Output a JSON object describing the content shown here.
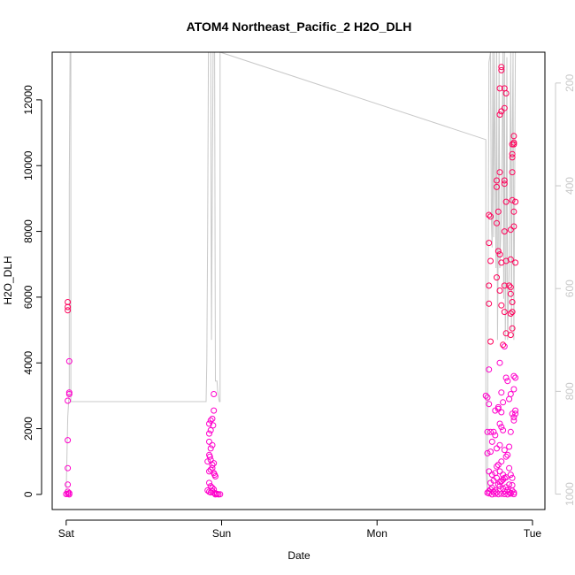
{
  "chart_data": {
    "type": "scatter",
    "title": "ATOM4 Northeast_Pacific_2 H2O_DLH",
    "xlabel": "Date",
    "ylabel": "H2O_DLH",
    "x_ticks": [
      {
        "label": "Sat",
        "day": 0
      },
      {
        "label": "Sun",
        "day": 1
      },
      {
        "label": "Mon",
        "day": 2
      },
      {
        "label": "Tue",
        "day": 3
      }
    ],
    "xlim_days": [
      -0.09,
      3.08
    ],
    "ylim": [
      -460,
      13450
    ],
    "y_ticks": [
      0,
      2000,
      4000,
      6000,
      8000,
      10000,
      12000
    ],
    "right_axis": {
      "ticks": [
        200,
        400,
        600,
        800,
        1000
      ],
      "color": "#c8c8c8",
      "lim": [
        1030,
        140
      ],
      "reversed": true
    },
    "grid": false,
    "legend": "none",
    "colors": {
      "points_low": "#ff00cc",
      "points_high": "#ff005a",
      "line": "#c8c8c8"
    },
    "series": [
      {
        "marker": "open-circle",
        "points": [
          [
            0.01,
            5850
          ],
          [
            0.01,
            5700
          ],
          [
            0.01,
            5600
          ],
          [
            0.02,
            4050
          ],
          [
            0.02,
            3100
          ],
          [
            0.02,
            3050
          ],
          [
            0.01,
            2850
          ],
          [
            0.01,
            1650
          ],
          [
            0.01,
            800
          ],
          [
            0.01,
            300
          ],
          [
            0.01,
            80
          ],
          [
            0.01,
            20
          ],
          [
            0.02,
            0
          ],
          [
            0.0,
            10
          ],
          [
            0.02,
            40
          ],
          [
            0.91,
            1000
          ],
          [
            0.92,
            2150
          ],
          [
            0.93,
            2250
          ],
          [
            0.92,
            1850
          ],
          [
            0.93,
            1950
          ],
          [
            0.94,
            2300
          ],
          [
            0.95,
            2550
          ],
          [
            0.95,
            3050
          ],
          [
            0.92,
            1600
          ],
          [
            0.93,
            1400
          ],
          [
            0.94,
            1500
          ],
          [
            0.92,
            1200
          ],
          [
            0.93,
            1050
          ],
          [
            0.94,
            900
          ],
          [
            0.95,
            950
          ],
          [
            0.92,
            700
          ],
          [
            0.93,
            750
          ],
          [
            0.94,
            800
          ],
          [
            0.95,
            650
          ],
          [
            0.96,
            550
          ],
          [
            0.92,
            350
          ],
          [
            0.93,
            250
          ],
          [
            0.94,
            200
          ],
          [
            0.95,
            150
          ],
          [
            0.91,
            120
          ],
          [
            0.92,
            80
          ],
          [
            0.93,
            60
          ],
          [
            0.94,
            100
          ],
          [
            0.95,
            50
          ],
          [
            0.96,
            30
          ],
          [
            0.97,
            10
          ],
          [
            0.98,
            0
          ],
          [
            0.99,
            5
          ],
          [
            0.96,
            0
          ],
          [
            0.97,
            20
          ],
          [
            0.945,
            2100
          ],
          [
            0.925,
            1150
          ],
          [
            0.955,
            600
          ],
          [
            2.7,
            3000
          ],
          [
            2.71,
            1900
          ],
          [
            2.71,
            1250
          ],
          [
            2.72,
            700
          ],
          [
            2.73,
            1300
          ],
          [
            2.73,
            1900
          ],
          [
            2.74,
            1600
          ],
          [
            2.75,
            1900
          ],
          [
            2.72,
            2750
          ],
          [
            2.71,
            2950
          ],
          [
            2.72,
            3800
          ],
          [
            2.73,
            4650
          ],
          [
            2.72,
            5800
          ],
          [
            2.72,
            6350
          ],
          [
            2.73,
            7100
          ],
          [
            2.72,
            7650
          ],
          [
            2.73,
            8450
          ],
          [
            2.72,
            8500
          ],
          [
            2.77,
            8250
          ],
          [
            2.78,
            8600
          ],
          [
            2.77,
            9350
          ],
          [
            2.77,
            9550
          ],
          [
            2.78,
            7400
          ],
          [
            2.77,
            6600
          ],
          [
            2.79,
            6200
          ],
          [
            2.8,
            5750
          ],
          [
            2.79,
            7300
          ],
          [
            2.8,
            7050
          ],
          [
            2.79,
            9800
          ],
          [
            2.82,
            9450
          ],
          [
            2.82,
            9550
          ],
          [
            2.83,
            8900
          ],
          [
            2.82,
            8000
          ],
          [
            2.83,
            7100
          ],
          [
            2.82,
            6350
          ],
          [
            2.82,
            5550
          ],
          [
            2.83,
            4900
          ],
          [
            2.82,
            4500
          ],
          [
            2.79,
            4000
          ],
          [
            2.8,
            3100
          ],
          [
            2.81,
            2800
          ],
          [
            2.8,
            2500
          ],
          [
            2.79,
            2150
          ],
          [
            2.8,
            2050
          ],
          [
            2.81,
            1950
          ],
          [
            2.79,
            1500
          ],
          [
            2.77,
            1400
          ],
          [
            2.76,
            1800
          ],
          [
            2.78,
            2650
          ],
          [
            2.76,
            2550
          ],
          [
            2.78,
            2600
          ],
          [
            2.8,
            12900
          ],
          [
            2.8,
            13000
          ],
          [
            2.79,
            12350
          ],
          [
            2.79,
            11550
          ],
          [
            2.8,
            11650
          ],
          [
            2.82,
            11750
          ],
          [
            2.82,
            12350
          ],
          [
            2.83,
            12200
          ],
          [
            2.81,
            4550
          ],
          [
            2.84,
            3450
          ],
          [
            2.83,
            3550
          ],
          [
            2.85,
            2900
          ],
          [
            2.86,
            1900
          ],
          [
            2.85,
            1450
          ],
          [
            2.84,
            1200
          ],
          [
            2.83,
            1150
          ],
          [
            2.82,
            1350
          ],
          [
            2.81,
            600
          ],
          [
            2.82,
            500
          ],
          [
            2.85,
            800
          ],
          [
            2.86,
            600
          ],
          [
            2.87,
            500
          ],
          [
            2.86,
            3050
          ],
          [
            2.85,
            6350
          ],
          [
            2.86,
            6100
          ],
          [
            2.86,
            6300
          ],
          [
            2.87,
            5850
          ],
          [
            2.86,
            5500
          ],
          [
            2.87,
            5550
          ],
          [
            2.87,
            5050
          ],
          [
            2.86,
            4850
          ],
          [
            2.86,
            7150
          ],
          [
            2.86,
            8050
          ],
          [
            2.87,
            9800
          ],
          [
            2.87,
            10250
          ],
          [
            2.87,
            10350
          ],
          [
            2.87,
            10650
          ],
          [
            2.88,
            10700
          ],
          [
            2.88,
            10900
          ],
          [
            2.88,
            10650
          ],
          [
            2.87,
            8950
          ],
          [
            2.88,
            8600
          ],
          [
            2.89,
            8900
          ],
          [
            2.88,
            8150
          ],
          [
            2.89,
            7050
          ],
          [
            2.88,
            3600
          ],
          [
            2.89,
            3550
          ],
          [
            2.88,
            3200
          ],
          [
            2.89,
            2550
          ],
          [
            2.88,
            2350
          ],
          [
            2.89,
            2450
          ],
          [
            2.87,
            2450
          ],
          [
            2.88,
            2250
          ],
          [
            2.71,
            50
          ],
          [
            2.72,
            100
          ],
          [
            2.73,
            150
          ],
          [
            2.74,
            200
          ],
          [
            2.75,
            80
          ],
          [
            2.76,
            120
          ],
          [
            2.77,
            60
          ],
          [
            2.78,
            300
          ],
          [
            2.79,
            250
          ],
          [
            2.8,
            400
          ],
          [
            2.81,
            180
          ],
          [
            2.82,
            90
          ],
          [
            2.83,
            220
          ],
          [
            2.84,
            130
          ],
          [
            2.85,
            70
          ],
          [
            2.86,
            40
          ],
          [
            2.87,
            110
          ],
          [
            2.88,
            60
          ],
          [
            2.72,
            30
          ],
          [
            2.74,
            0
          ],
          [
            2.76,
            15
          ],
          [
            2.78,
            5
          ],
          [
            2.8,
            20
          ],
          [
            2.82,
            10
          ],
          [
            2.84,
            0
          ],
          [
            2.86,
            25
          ],
          [
            2.88,
            8
          ],
          [
            2.73,
            350
          ],
          [
            2.75,
            420
          ],
          [
            2.77,
            500
          ],
          [
            2.79,
            380
          ],
          [
            2.81,
            450
          ],
          [
            2.83,
            520
          ],
          [
            2.85,
            300
          ],
          [
            2.87,
            280
          ],
          [
            2.74,
            600
          ],
          [
            2.76,
            650
          ],
          [
            2.78,
            900
          ],
          [
            2.8,
            1000
          ],
          [
            2.77,
            850
          ],
          [
            2.79,
            700
          ]
        ]
      }
    ],
    "line_series": {
      "axis": "right",
      "points": [
        [
          0.0,
          1000
        ],
        [
          0.01,
          850
        ],
        [
          0.02,
          800
        ],
        [
          0.02,
          400
        ],
        [
          0.025,
          140
        ],
        [
          0.03,
          140
        ],
        [
          0.03,
          820
        ],
        [
          0.5,
          820
        ],
        [
          0.9,
          820
        ],
        [
          0.9,
          820
        ],
        [
          0.905,
          740
        ],
        [
          0.91,
          500
        ],
        [
          0.915,
          140
        ],
        [
          0.93,
          140
        ],
        [
          0.935,
          700
        ],
        [
          0.94,
          400
        ],
        [
          0.945,
          140
        ],
        [
          0.955,
          140
        ],
        [
          0.96,
          780
        ],
        [
          0.97,
          780
        ],
        [
          0.975,
          800
        ],
        [
          0.985,
          820
        ],
        [
          0.99,
          820
        ],
        [
          0.99,
          140
        ],
        [
          2.7,
          310
        ],
        [
          2.7,
          950
        ],
        [
          2.71,
          1000
        ],
        [
          2.715,
          520
        ],
        [
          2.72,
          160
        ],
        [
          2.73,
          140
        ],
        [
          2.735,
          460
        ],
        [
          2.74,
          520
        ],
        [
          2.745,
          140
        ],
        [
          2.75,
          500
        ],
        [
          2.755,
          140
        ],
        [
          2.765,
          560
        ],
        [
          2.77,
          140
        ],
        [
          2.775,
          700
        ],
        [
          2.78,
          500
        ],
        [
          2.785,
          140
        ],
        [
          2.79,
          560
        ],
        [
          2.8,
          450
        ],
        [
          2.81,
          140
        ],
        [
          2.815,
          620
        ],
        [
          2.82,
          140
        ],
        [
          2.825,
          700
        ],
        [
          2.83,
          560
        ],
        [
          2.835,
          150
        ],
        [
          2.84,
          700
        ],
        [
          2.85,
          560
        ],
        [
          2.86,
          140
        ],
        [
          2.865,
          680
        ],
        [
          2.87,
          300
        ],
        [
          2.875,
          140
        ],
        [
          2.88,
          700
        ],
        [
          2.89,
          140
        ],
        [
          2.9,
          140
        ]
      ]
    }
  }
}
